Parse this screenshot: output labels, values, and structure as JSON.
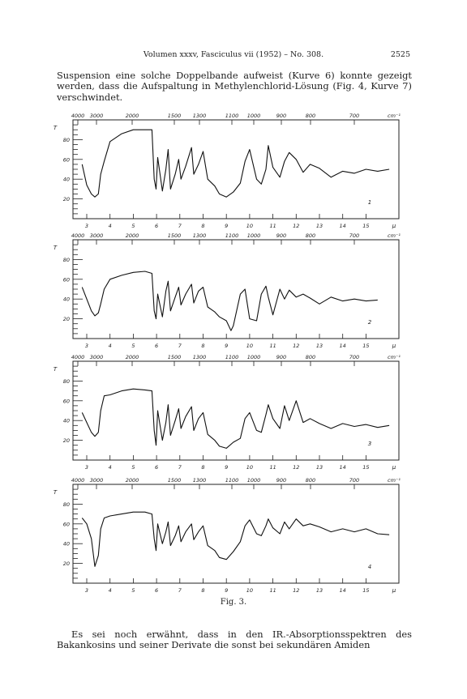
{
  "header": {
    "running_title": "Volumen xxxv, Fasciculus vii (1952) – No. 308.",
    "page_number": "2525"
  },
  "top_paragraph": "Suspension eine solche Doppelbande aufweist (Kurve 6) konnte gezeigt werden, dass die Aufspaltung in Methylenchlorid-Lösung (Fig. 4, Kurve 7) verschwindet.",
  "figure_caption": "Fig. 3.",
  "bottom_paragraph": "Es sei noch erwähnt, dass in den IR.-Absorptionsspektren des Bakankosins und seiner Derivate die sonst bei sekundären Amiden",
  "chart_data": {
    "type": "line",
    "panels": [
      {
        "curve_label": "1",
        "x": [
          2.8,
          3.0,
          3.2,
          3.35,
          3.5,
          3.6,
          3.75,
          4.0,
          4.5,
          5.0,
          5.5,
          5.8,
          5.9,
          5.98,
          6.05,
          6.25,
          6.4,
          6.5,
          6.6,
          6.8,
          6.95,
          7.05,
          7.25,
          7.5,
          7.6,
          7.8,
          8.0,
          8.2,
          8.5,
          8.7,
          9.0,
          9.3,
          9.6,
          9.8,
          10.0,
          10.3,
          10.5,
          10.7,
          10.8,
          11.0,
          11.3,
          11.5,
          11.7,
          12.0,
          12.3,
          12.6,
          13.0,
          13.5,
          14.0,
          14.5,
          15.0,
          15.5,
          16.0
        ],
        "T": [
          55,
          34,
          25,
          22,
          25,
          45,
          58,
          78,
          86,
          90,
          90,
          90,
          40,
          30,
          62,
          28,
          50,
          70,
          30,
          45,
          60,
          40,
          53,
          72,
          45,
          55,
          68,
          40,
          33,
          25,
          22,
          27,
          36,
          58,
          70,
          40,
          35,
          50,
          74,
          52,
          42,
          58,
          67,
          60,
          47,
          55,
          51,
          42,
          48,
          46,
          50,
          48,
          50
        ]
      },
      {
        "curve_label": "2",
        "x": [
          2.8,
          3.0,
          3.2,
          3.35,
          3.5,
          3.6,
          3.75,
          4.0,
          4.5,
          5.0,
          5.5,
          5.8,
          5.9,
          5.98,
          6.05,
          6.25,
          6.4,
          6.5,
          6.6,
          6.8,
          6.95,
          7.05,
          7.25,
          7.5,
          7.6,
          7.8,
          8.0,
          8.2,
          8.5,
          8.7,
          9.0,
          9.2,
          9.3,
          9.6,
          9.8,
          10.0,
          10.3,
          10.5,
          10.7,
          10.8,
          11.0,
          11.3,
          11.5,
          11.7,
          12.0,
          12.3,
          12.6,
          13.0,
          13.5,
          14.0,
          14.5,
          15.0,
          15.5,
          16.0
        ],
        "T": [
          52,
          40,
          28,
          23,
          26,
          35,
          50,
          60,
          64,
          67,
          68,
          66,
          28,
          20,
          45,
          22,
          48,
          58,
          28,
          42,
          52,
          34,
          45,
          55,
          36,
          48,
          52,
          32,
          27,
          22,
          18,
          8,
          13,
          45,
          50,
          20,
          18,
          45,
          53,
          42,
          24,
          50,
          40,
          49,
          42,
          45,
          41,
          35,
          42,
          38,
          40,
          38,
          39
        ]
      },
      {
        "curve_label": "3",
        "x": [
          2.8,
          3.0,
          3.2,
          3.35,
          3.5,
          3.6,
          3.75,
          4.0,
          4.5,
          5.0,
          5.5,
          5.8,
          5.9,
          5.98,
          6.05,
          6.25,
          6.4,
          6.5,
          6.6,
          6.8,
          6.95,
          7.05,
          7.25,
          7.5,
          7.6,
          7.8,
          8.0,
          8.2,
          8.5,
          8.7,
          9.0,
          9.3,
          9.6,
          9.8,
          10.0,
          10.3,
          10.5,
          10.7,
          10.8,
          11.0,
          11.3,
          11.5,
          11.7,
          12.0,
          12.3,
          12.6,
          13.0,
          13.5,
          14.0,
          14.5,
          15.0,
          15.5,
          16.0
        ],
        "T": [
          48,
          38,
          28,
          24,
          28,
          50,
          65,
          66,
          70,
          72,
          71,
          70,
          30,
          15,
          50,
          20,
          38,
          56,
          25,
          40,
          52,
          32,
          44,
          54,
          30,
          42,
          48,
          26,
          20,
          14,
          12,
          18,
          22,
          42,
          48,
          30,
          28,
          46,
          56,
          42,
          32,
          55,
          40,
          60,
          38,
          42,
          37,
          32,
          37,
          34,
          36,
          33,
          35
        ]
      },
      {
        "curve_label": "4",
        "x": [
          2.8,
          3.0,
          3.2,
          3.35,
          3.5,
          3.6,
          3.75,
          4.0,
          4.5,
          5.0,
          5.5,
          5.8,
          5.9,
          5.98,
          6.05,
          6.25,
          6.4,
          6.5,
          6.6,
          6.8,
          6.95,
          7.05,
          7.25,
          7.5,
          7.6,
          7.8,
          8.0,
          8.2,
          8.5,
          8.7,
          9.0,
          9.3,
          9.6,
          9.8,
          10.0,
          10.3,
          10.5,
          10.7,
          10.8,
          11.0,
          11.3,
          11.5,
          11.7,
          12.0,
          12.3,
          12.6,
          13.0,
          13.5,
          14.0,
          14.5,
          15.0,
          15.5,
          16.0
        ],
        "T": [
          66,
          60,
          45,
          17,
          28,
          55,
          66,
          68,
          70,
          72,
          72,
          70,
          45,
          33,
          60,
          40,
          52,
          62,
          38,
          48,
          58,
          42,
          52,
          60,
          44,
          52,
          58,
          38,
          33,
          26,
          24,
          32,
          42,
          58,
          64,
          50,
          48,
          58,
          65,
          56,
          50,
          62,
          55,
          65,
          58,
          60,
          57,
          52,
          55,
          52,
          55,
          50,
          49
        ]
      }
    ],
    "x_axis_micron": {
      "label": "μ",
      "ticks": [
        "3",
        "4",
        "5",
        "6",
        "7",
        "8",
        "9",
        "10",
        "11",
        "12",
        "13",
        "14",
        "15"
      ]
    },
    "x_axis_wavenumber": {
      "label": "cm⁻¹",
      "ticks": [
        "4000",
        "3000",
        "2000",
        "1500",
        "1300",
        "1100",
        "1000",
        "900",
        "800",
        "700"
      ]
    },
    "y_axis": {
      "label": "T",
      "ticks": [
        "20",
        "40",
        "60",
        "80"
      ],
      "ylim": [
        0,
        100
      ]
    }
  }
}
